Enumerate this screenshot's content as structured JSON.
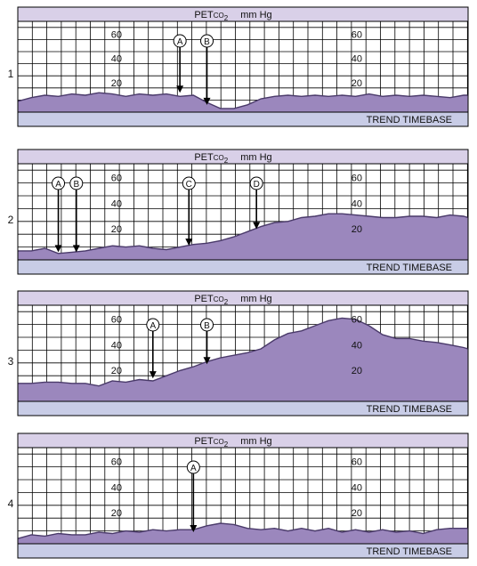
{
  "header": {
    "measure_main": "PET",
    "measure_sub": "CO",
    "measure_subscript": "2",
    "unit": "mm Hg"
  },
  "footer_label": "TREND TIMEBASE",
  "colors": {
    "header_bg": "#d9d0e8",
    "footer_bg": "#c8cce6",
    "fill": "#9b87bd",
    "line": "#4a3a6a",
    "grid": "#000000"
  },
  "chart_data": [
    {
      "type": "area",
      "panel_label": "1",
      "ylim": [
        0,
        75
      ],
      "y_ticks": [
        "20",
        "40",
        "60"
      ],
      "x": [
        0,
        3,
        6,
        9,
        12,
        15,
        18,
        21,
        24,
        27,
        30,
        33,
        36,
        39,
        42,
        45,
        48,
        51,
        54,
        57,
        60,
        63,
        66,
        69,
        72,
        75,
        78,
        81,
        84,
        87,
        90,
        93,
        96,
        99,
        100
      ],
      "y": [
        9,
        12,
        14,
        13,
        15,
        14,
        16,
        15,
        13,
        15,
        14,
        15,
        13,
        14,
        8,
        3,
        3,
        6,
        11,
        13,
        14,
        13,
        14,
        13,
        14,
        13,
        15,
        13,
        14,
        13,
        14,
        13,
        12,
        14,
        14
      ],
      "markers": [
        {
          "label": "A",
          "x": 36,
          "y": 16
        },
        {
          "label": "B",
          "x": 42,
          "y": 6
        }
      ]
    },
    {
      "type": "area",
      "panel_label": "2",
      "ylim": [
        0,
        75
      ],
      "y_ticks": [
        "20",
        "40",
        "60"
      ],
      "x": [
        0,
        3,
        6,
        9,
        12,
        15,
        18,
        21,
        24,
        27,
        30,
        33,
        36,
        39,
        42,
        45,
        48,
        51,
        54,
        57,
        60,
        63,
        66,
        69,
        72,
        75,
        78,
        81,
        84,
        87,
        90,
        93,
        96,
        99,
        100
      ],
      "y": [
        7,
        7,
        9,
        5,
        6,
        7,
        9,
        11,
        10,
        11,
        9,
        8,
        10,
        12,
        13,
        15,
        18,
        22,
        26,
        29,
        30,
        33,
        34,
        36,
        36,
        35,
        34,
        33,
        33,
        34,
        34,
        33,
        35,
        34,
        33
      ],
      "markers": [
        {
          "label": "A",
          "x": 9,
          "y": 6
        },
        {
          "label": "B",
          "x": 13,
          "y": 6
        },
        {
          "label": "C",
          "x": 38,
          "y": 11
        },
        {
          "label": "D",
          "x": 53,
          "y": 24
        }
      ]
    },
    {
      "type": "area",
      "panel_label": "3",
      "ylim": [
        0,
        75
      ],
      "y_ticks": [
        "20",
        "40",
        "60"
      ],
      "x": [
        0,
        3,
        6,
        9,
        12,
        15,
        18,
        21,
        24,
        27,
        30,
        33,
        36,
        39,
        42,
        45,
        48,
        51,
        54,
        57,
        60,
        63,
        66,
        69,
        72,
        75,
        78,
        81,
        84,
        87,
        90,
        93,
        96,
        99,
        100
      ],
      "y": [
        14,
        14,
        15,
        15,
        14,
        14,
        12,
        16,
        15,
        17,
        16,
        20,
        24,
        27,
        31,
        34,
        36,
        38,
        41,
        48,
        53,
        55,
        59,
        63,
        65,
        64,
        59,
        52,
        49,
        49,
        47,
        46,
        44,
        42,
        41
      ],
      "markers": [
        {
          "label": "A",
          "x": 30,
          "y": 18
        },
        {
          "label": "B",
          "x": 42,
          "y": 29
        }
      ]
    },
    {
      "type": "area",
      "panel_label": "4",
      "ylim": [
        0,
        75
      ],
      "y_ticks": [
        "20",
        "40",
        "60"
      ],
      "x": [
        0,
        3,
        6,
        9,
        12,
        15,
        18,
        21,
        24,
        27,
        30,
        33,
        36,
        39,
        42,
        45,
        48,
        51,
        54,
        57,
        60,
        63,
        66,
        69,
        72,
        75,
        78,
        81,
        84,
        87,
        90,
        93,
        96,
        99,
        100
      ],
      "y": [
        4,
        7,
        6,
        8,
        7,
        7,
        9,
        8,
        10,
        9,
        11,
        10,
        11,
        11,
        14,
        16,
        15,
        12,
        11,
        12,
        10,
        12,
        10,
        12,
        9,
        11,
        9,
        11,
        9,
        10,
        8,
        11,
        12,
        12,
        12
      ],
      "markers": [
        {
          "label": "A",
          "x": 39,
          "y": 9
        }
      ]
    }
  ]
}
